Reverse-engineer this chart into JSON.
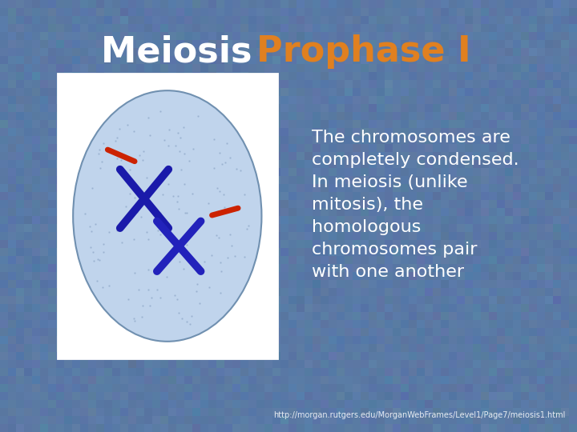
{
  "title_part1": "Meiosis ",
  "title_part2": "Prophase I",
  "title_color1": "#ffffff",
  "title_color2": "#e08020",
  "title_fontsize": 32,
  "body_text": "The chromosomes are\ncompletely condensed.\nIn meiosis (unlike\nmitosis), the\nhomologous\nchromosomes pair\nwith one another",
  "body_color": "#ffffff",
  "body_fontsize": 16,
  "url_text": "http://morgan.rutgers.edu/MorganWebFrames/Level1/Page7/meiosis1.html",
  "url_color": "#ffffff",
  "url_fontsize": 7,
  "bg_color": "#5a7aaa",
  "cell_fill": "#c0d4ec",
  "cell_edge": "#7090b0",
  "chrom_blue1": "#1a1aaa",
  "chrom_blue2": "#2222bb",
  "chrom_red": "#cc2200"
}
